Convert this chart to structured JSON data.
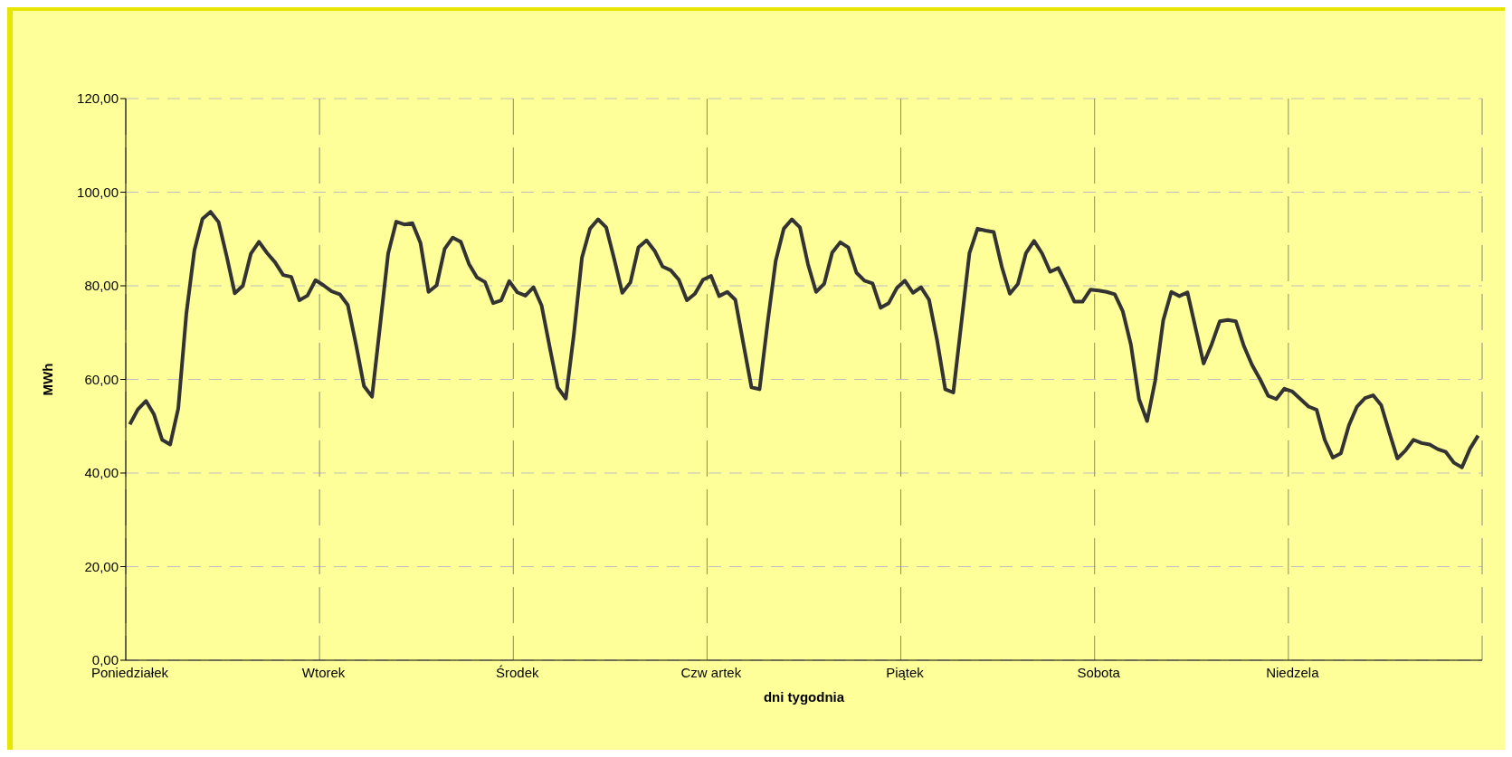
{
  "chart_data": {
    "type": "line",
    "xlabel": "dni tygodnia",
    "ylabel": "MWh",
    "categories": [
      "Poniedziałek",
      null,
      null,
      null,
      null,
      null,
      null,
      null,
      null,
      null,
      null,
      null,
      null,
      null,
      null,
      null,
      null,
      null,
      null,
      null,
      null,
      null,
      null,
      null,
      "Wtorek",
      null,
      null,
      null,
      null,
      null,
      null,
      null,
      null,
      null,
      null,
      null,
      null,
      null,
      null,
      null,
      null,
      null,
      null,
      null,
      null,
      null,
      null,
      null,
      "Środek",
      null,
      null,
      null,
      null,
      null,
      null,
      null,
      null,
      null,
      null,
      null,
      null,
      null,
      null,
      null,
      null,
      null,
      null,
      null,
      null,
      null,
      null,
      null,
      "Czw artek",
      null,
      null,
      null,
      null,
      null,
      null,
      null,
      null,
      null,
      null,
      null,
      null,
      null,
      null,
      null,
      null,
      null,
      null,
      null,
      null,
      null,
      null,
      null,
      "Piątek",
      null,
      null,
      null,
      null,
      null,
      null,
      null,
      null,
      null,
      null,
      null,
      null,
      null,
      null,
      null,
      null,
      null,
      null,
      null,
      null,
      null,
      null,
      null,
      "Sobota",
      null,
      null,
      null,
      null,
      null,
      null,
      null,
      null,
      null,
      null,
      null,
      null,
      null,
      null,
      null,
      null,
      null,
      null,
      null,
      null,
      null,
      null,
      null,
      "Niedzela",
      null,
      null,
      null,
      null,
      null,
      null,
      null,
      null,
      null,
      null,
      null,
      null,
      null,
      null,
      null,
      null,
      null,
      null,
      null,
      null,
      null,
      null,
      null
    ],
    "series": [
      {
        "color": "#333333",
        "values": [
          50.4,
          53.6,
          55.4,
          52.5,
          47.1,
          46.1,
          53.8,
          74.0,
          87.6,
          94.3,
          95.8,
          93.6,
          86.3,
          78.4,
          80.0,
          86.9,
          89.4,
          87.0,
          85.0,
          82.3,
          81.9,
          76.9,
          77.9,
          81.2,
          80.1,
          78.8,
          78.2,
          75.9,
          67.6,
          58.6,
          56.3,
          71.5,
          86.9,
          93.7,
          93.1,
          93.4,
          89.2,
          78.7,
          80.1,
          87.9,
          90.3,
          89.4,
          84.7,
          81.8,
          80.8,
          76.3,
          76.9,
          81.0,
          78.6,
          77.9,
          79.7,
          75.8,
          67.0,
          58.3,
          55.9,
          69.6,
          86.0,
          92.2,
          94.2,
          92.5,
          85.7,
          78.5,
          80.7,
          88.2,
          89.7,
          87.5,
          84.1,
          83.3,
          81.3,
          76.9,
          78.3,
          81.3,
          82.1,
          77.8,
          78.7,
          77.0,
          67.6,
          58.3,
          57.9,
          72.1,
          85.3,
          92.2,
          94.2,
          92.5,
          84.6,
          78.7,
          80.4,
          87.1,
          89.3,
          88.2,
          82.8,
          81.1,
          80.5,
          75.3,
          76.3,
          79.5,
          81.1,
          78.5,
          79.7,
          77.0,
          68.3,
          57.9,
          57.2,
          72.1,
          87.0,
          92.2,
          91.8,
          91.5,
          84.1,
          78.3,
          80.4,
          87.0,
          89.6,
          86.9,
          83.0,
          83.8,
          80.3,
          76.6,
          76.6,
          79.2,
          79.0,
          78.7,
          78.2,
          74.5,
          67.4,
          55.8,
          51.1,
          59.7,
          72.6,
          78.7,
          77.8,
          78.6,
          71.0,
          63.4,
          67.5,
          72.4,
          72.7,
          72.4,
          67.1,
          63.1,
          60.0,
          56.5,
          55.8,
          58.0,
          57.4,
          55.8,
          54.2,
          53.5,
          47.1,
          43.3,
          44.2,
          50.2,
          54.2,
          56.0,
          56.6,
          54.5,
          48.7,
          43.1,
          44.8,
          47.1,
          46.4,
          46.1,
          45.1,
          44.5,
          42.2,
          41.2,
          45.2,
          48.0
        ]
      }
    ],
    "ylim": [
      0,
      120
    ],
    "yticks": [
      {
        "value": 0,
        "label": "0,00"
      },
      {
        "value": 20,
        "label": "20,00"
      },
      {
        "value": 40,
        "label": "40,00"
      },
      {
        "value": 60,
        "label": "60,00"
      },
      {
        "value": 80,
        "label": "80,00"
      },
      {
        "value": 100,
        "label": "100,00"
      },
      {
        "value": 120,
        "label": "120,00"
      }
    ],
    "grid": true
  }
}
